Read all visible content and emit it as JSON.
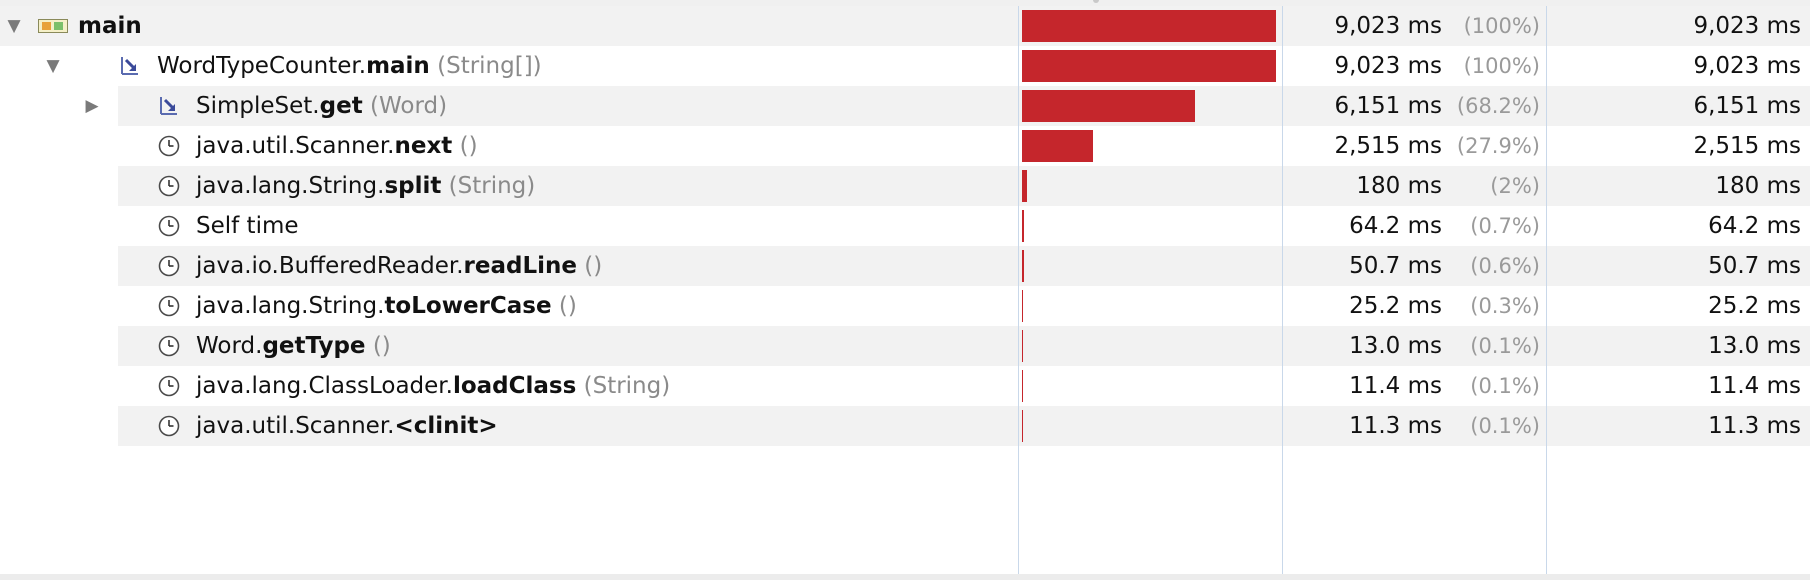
{
  "call_tree": {
    "rows": [
      {
        "method": "main",
        "signature": "",
        "ms": "9,023 ms",
        "pct": "(100%)",
        "total": "9,023 ms",
        "bar_fraction": 1.0,
        "icon": "thread-icon",
        "toggle": "expanded"
      },
      {
        "prefix": "WordTypeCounter.",
        "method": "main",
        "signature": "(String[])",
        "ms": "9,023 ms",
        "pct": "(100%)",
        "total": "9,023 ms",
        "bar_fraction": 1.0,
        "icon": "method-call-icon",
        "toggle": "expanded"
      },
      {
        "prefix": "SimpleSet.",
        "method": "get",
        "signature": "(Word)",
        "ms": "6,151 ms",
        "pct": "(68.2%)",
        "total": "6,151 ms",
        "bar_fraction": 0.682,
        "icon": "method-call-icon",
        "toggle": "collapsed"
      },
      {
        "prefix": "java.util.Scanner.",
        "method": "next",
        "signature": "()",
        "ms": "2,515 ms",
        "pct": "(27.9%)",
        "total": "2,515 ms",
        "bar_fraction": 0.279,
        "icon": "clock-icon",
        "toggle": "none"
      },
      {
        "prefix": "java.lang.String.",
        "method": "split",
        "signature": "(String)",
        "ms": "180 ms",
        "pct": "(2%)",
        "total": "180 ms",
        "bar_fraction": 0.02,
        "icon": "clock-icon",
        "toggle": "none"
      },
      {
        "text": "Self time",
        "ms": "64.2 ms",
        "pct": "(0.7%)",
        "total": "64.2 ms",
        "bar_fraction": 0.007,
        "icon": "clock-icon",
        "toggle": "none"
      },
      {
        "prefix": "java.io.BufferedReader.",
        "method": "readLine",
        "signature": "()",
        "ms": "50.7 ms",
        "pct": "(0.6%)",
        "total": "50.7 ms",
        "bar_fraction": 0.006,
        "icon": "clock-icon",
        "toggle": "none"
      },
      {
        "prefix": "java.lang.String.",
        "method": "toLowerCase",
        "signature": "()",
        "ms": "25.2 ms",
        "pct": "(0.3%)",
        "total": "25.2 ms",
        "bar_fraction": 0.003,
        "icon": "clock-icon",
        "toggle": "none"
      },
      {
        "prefix": "Word.",
        "method": "getType",
        "signature": "()",
        "ms": "13.0 ms",
        "pct": "(0.1%)",
        "total": "13.0 ms",
        "bar_fraction": 0.001,
        "icon": "clock-icon",
        "toggle": "none"
      },
      {
        "prefix": "java.lang.ClassLoader.",
        "method": "loadClass",
        "signature": "(String)",
        "ms": "11.4 ms",
        "pct": "(0.1%)",
        "total": "11.4 ms",
        "bar_fraction": 0.001,
        "icon": "clock-icon",
        "toggle": "none"
      },
      {
        "prefix": "java.util.Scanner.",
        "method": "<clinit>",
        "signature": "",
        "ms": "11.3 ms",
        "pct": "(0.1%)",
        "total": "11.3 ms",
        "bar_fraction": 0.001,
        "icon": "clock-icon",
        "toggle": "none"
      }
    ]
  },
  "colors": {
    "bar": "#c5262c",
    "stripe": "#f2f2f2",
    "signature": "#8a8a8a",
    "divider": "#c9d8ea"
  }
}
